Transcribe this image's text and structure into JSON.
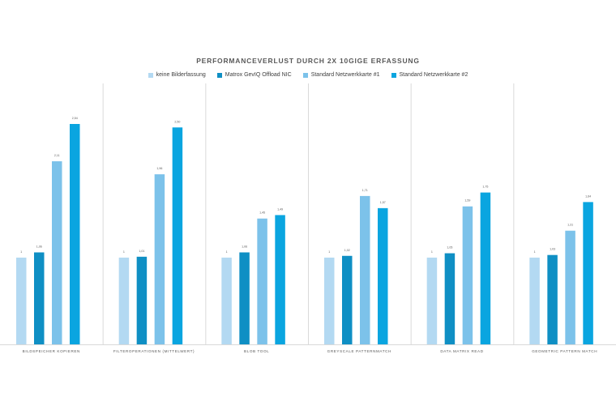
{
  "chart_data": {
    "type": "bar",
    "title": "PERFORMANCEVERLUST DURCH 2X 10GIGE ERFASSUNG",
    "categories": [
      "BILDSPEICHER KOPIEREN",
      "FILTEROPERATIONEN (MITTELWERT)",
      "BLOB TOOL",
      "GREYSCALE PATTERNMATCH",
      "DATA MATRIX READ",
      "GEOMETRIC PATTERN MATCH"
    ],
    "series": [
      {
        "name": "keine Bilderfassung",
        "color": "#b3d9f2",
        "values": [
          1,
          1,
          1,
          1,
          1,
          1
        ],
        "labels": [
          "1",
          "1",
          "1",
          "1",
          "1",
          "1"
        ]
      },
      {
        "name": "Matrox GevIQ Offload NIC",
        "color": "#0f8fc4",
        "values": [
          1.06,
          1.01,
          1.06,
          1.02,
          1.05,
          1.03
        ],
        "labels": [
          "1,06",
          "1,01",
          "1,06",
          "1,02",
          "1,05",
          "1,03"
        ]
      },
      {
        "name": "Standard Netzwerkkarte #1",
        "color": "#7cc2ea",
        "values": [
          2.11,
          1.96,
          1.45,
          1.71,
          1.59,
          1.31
        ],
        "labels": [
          "2,11",
          "1,96",
          "1,45",
          "1,71",
          "1,59",
          "1,31"
        ]
      },
      {
        "name": "Standard Netzwerkkarte #2",
        "color": "#0aa5e0",
        "values": [
          2.54,
          2.5,
          1.49,
          1.57,
          1.75,
          1.64
        ],
        "labels": [
          "2,54",
          "2,50",
          "1,49",
          "1,57",
          "1,75",
          "1,64"
        ]
      }
    ],
    "ylim": [
      0,
      2.6
    ],
    "grid": false,
    "legend_position": "top"
  }
}
